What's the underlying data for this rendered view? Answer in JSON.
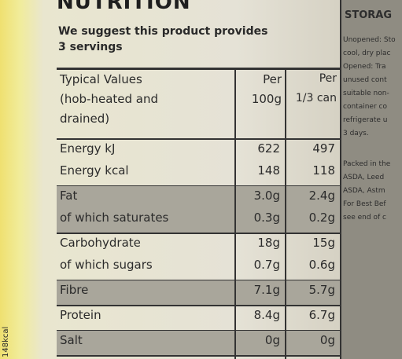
{
  "header": {
    "title": "NUTRITION",
    "intro": [
      "We suggest this product provides",
      "3 servings"
    ]
  },
  "table": {
    "head": {
      "label": [
        "Typical Values",
        "(hob-heated and",
        "drained)"
      ],
      "per100g": [
        "Per",
        "100g"
      ],
      "perServing": [
        "Per",
        "1/3 can"
      ]
    },
    "sections": [
      {
        "shaded": false,
        "rows": [
          [
            "Energy kJ",
            "622",
            "497"
          ],
          [
            "Energy kcal",
            "148",
            "118"
          ]
        ]
      },
      {
        "shaded": true,
        "rows": [
          [
            "Fat",
            "3.0g",
            "2.4g"
          ],
          [
            "of which saturates",
            "0.3g",
            "0.2g"
          ]
        ]
      },
      {
        "shaded": false,
        "rows": [
          [
            "Carbohydrate",
            "18g",
            "15g"
          ],
          [
            "of which sugars",
            "0.7g",
            "0.6g"
          ]
        ]
      },
      {
        "shaded": true,
        "rows": [
          [
            "Fibre",
            "7.1g",
            "5.7g"
          ]
        ]
      },
      {
        "shaded": false,
        "rows": [
          [
            "Protein",
            "8.4g",
            "6.7g"
          ]
        ]
      },
      {
        "shaded": true,
        "rows": [
          [
            "Salt",
            "0g",
            "0g"
          ]
        ]
      }
    ]
  },
  "side_panel": {
    "title": "STORAG",
    "lines": [
      "Unopened: Sto",
      "cool, dry plac",
      "Opened: Tra",
      "unused cont",
      "suitable non-",
      "container co",
      "refrigerate u",
      "3 days.",
      "Packed in the",
      "ASDA, Leed",
      "ASDA, Astm",
      "For Best Bef",
      "see end of c"
    ]
  },
  "edge_text": "148kcal"
}
